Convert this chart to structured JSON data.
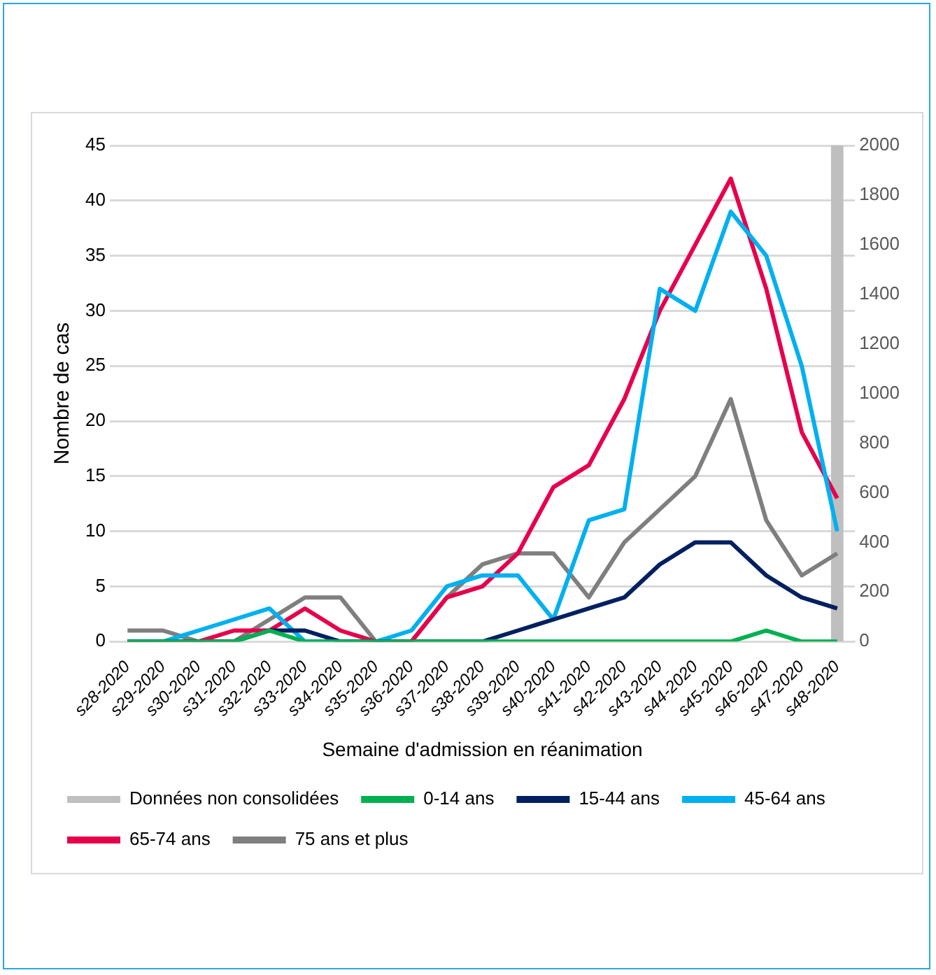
{
  "chart_data": {
    "type": "line",
    "xlabel": "Semaine d'admission en réanimation",
    "ylabel": "Nombre de cas",
    "categories": [
      "s28-2020",
      "s29-2020",
      "s30-2020",
      "s31-2020",
      "s32-2020",
      "s33-2020",
      "s34-2020",
      "s35-2020",
      "s36-2020",
      "s37-2020",
      "s38-2020",
      "s39-2020",
      "s40-2020",
      "s41-2020",
      "s42-2020",
      "s43-2020",
      "s44-2020",
      "s45-2020",
      "s46-2020",
      "s47-2020",
      "s48-2020"
    ],
    "series": [
      {
        "name": "Données non consolidées",
        "type": "bar",
        "axis": "y2",
        "color": "#bfbfbf",
        "values": [
          null,
          null,
          null,
          null,
          null,
          null,
          null,
          null,
          null,
          null,
          null,
          null,
          null,
          null,
          null,
          null,
          null,
          null,
          null,
          null,
          2000
        ]
      },
      {
        "name": "0-14 ans",
        "color": "#00b050",
        "values": [
          0,
          0,
          0,
          0,
          1,
          0,
          0,
          0,
          0,
          0,
          0,
          0,
          0,
          0,
          0,
          0,
          0,
          0,
          1,
          0,
          0
        ]
      },
      {
        "name": "15-44 ans",
        "color": "#002060",
        "values": [
          0,
          0,
          0,
          0,
          1,
          1,
          0,
          0,
          0,
          0,
          0,
          1,
          2,
          3,
          4,
          7,
          9,
          9,
          6,
          4,
          3
        ]
      },
      {
        "name": "45-64 ans",
        "color": "#00b0f0",
        "values": [
          0,
          0,
          1,
          2,
          3,
          0,
          0,
          0,
          1,
          5,
          6,
          6,
          2,
          11,
          12,
          32,
          30,
          39,
          35,
          25,
          10
        ]
      },
      {
        "name": "65-74 ans",
        "color": "#e6004c",
        "values": [
          0,
          0,
          0,
          1,
          1,
          3,
          1,
          0,
          0,
          4,
          5,
          8,
          14,
          16,
          22,
          30,
          36,
          42,
          32,
          19,
          13
        ]
      },
      {
        "name": "75 ans et plus",
        "color": "#7f7f7f",
        "values": [
          1,
          1,
          0,
          0,
          2,
          4,
          4,
          0,
          0,
          4,
          7,
          8,
          8,
          4,
          9,
          12,
          15,
          22,
          11,
          6,
          8
        ]
      }
    ],
    "ylim": [
      0,
      45
    ],
    "yticks": [
      0,
      5,
      10,
      15,
      20,
      25,
      30,
      35,
      40,
      45
    ],
    "y2lim": [
      0,
      2000
    ],
    "y2ticks": [
      0,
      200,
      400,
      600,
      800,
      1000,
      1200,
      1400,
      1600,
      1800,
      2000
    ],
    "grid": "y",
    "legend": "bottom",
    "marker": "none",
    "line_style": "solid"
  }
}
